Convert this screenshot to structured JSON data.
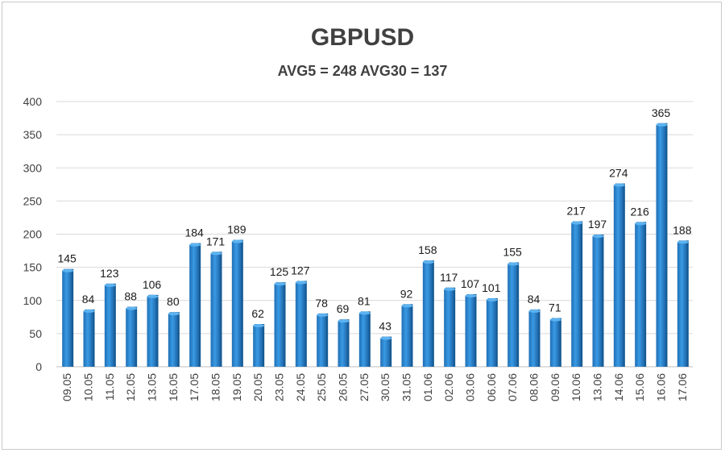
{
  "chart_data": {
    "type": "bar",
    "title": "GBPUSD",
    "subtitle": "AVG5 = 248 AVG30 = 137",
    "xlabel": "",
    "ylabel": "",
    "ylim": [
      0,
      400
    ],
    "yticks": [
      0,
      50,
      100,
      150,
      200,
      250,
      300,
      350,
      400
    ],
    "grid": true,
    "bar_color": "#2E86D1",
    "categories": [
      "09.05",
      "10.05",
      "11.05",
      "12.05",
      "13.05",
      "16.05",
      "17.05",
      "18.05",
      "19.05",
      "20.05",
      "23.05",
      "24.05",
      "25.05",
      "26.05",
      "27.05",
      "30.05",
      "31.05",
      "01.06",
      "02.06",
      "03.06",
      "06.06",
      "07.06",
      "08.06",
      "09.06",
      "10.06",
      "13.06",
      "14.06",
      "15.06",
      "16.06",
      "17.06"
    ],
    "values": [
      145,
      84,
      123,
      88,
      106,
      80,
      184,
      171,
      189,
      62,
      125,
      127,
      78,
      69,
      81,
      43,
      92,
      158,
      117,
      107,
      101,
      155,
      84,
      71,
      217,
      197,
      274,
      216,
      365,
      188
    ]
  }
}
